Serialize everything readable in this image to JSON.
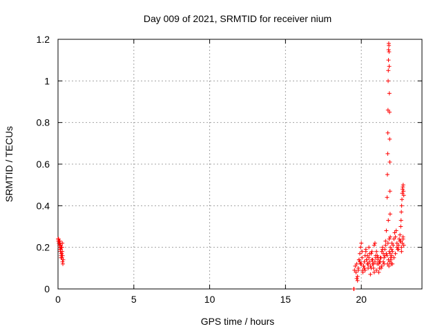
{
  "chart_data": {
    "type": "scatter",
    "title": "Day 009 of 2021, SRMTID for receiver nium",
    "xlabel": "GPS time / hours",
    "ylabel": "SRMTID / TECUs",
    "xlim": [
      0,
      24
    ],
    "ylim": [
      0,
      1.2
    ],
    "xticks": [
      0,
      5,
      10,
      15,
      20
    ],
    "xtick_labels": [
      "0",
      "5",
      "10",
      "15",
      "20"
    ],
    "yticks": [
      0,
      0.2,
      0.4,
      0.6,
      0.8,
      1.0,
      1.2
    ],
    "ytick_labels": [
      "0",
      "0.2",
      "0.4",
      "0.6",
      "0.8",
      "1",
      "1.2"
    ],
    "grid": true,
    "marker": "plus",
    "color": "#ff0000",
    "series": [
      {
        "name": "SRMTID",
        "x": [
          0.0,
          0.02,
          0.04,
          0.06,
          0.08,
          0.1,
          0.12,
          0.14,
          0.16,
          0.18,
          0.2,
          0.22,
          0.24,
          0.26,
          0.28,
          0.3,
          0.32,
          0.34,
          0.1,
          0.14,
          0.18,
          0.22,
          0.26,
          0.3,
          0.12,
          0.2,
          0.28,
          19.55,
          19.6,
          19.65,
          19.7,
          19.75,
          19.8,
          19.85,
          19.9,
          19.95,
          20.0,
          20.05,
          20.1,
          20.15,
          20.2,
          20.25,
          20.3,
          20.35,
          20.4,
          20.45,
          20.5,
          20.55,
          20.6,
          20.65,
          20.7,
          20.75,
          20.8,
          20.85,
          20.9,
          20.95,
          21.0,
          21.05,
          21.1,
          21.15,
          21.2,
          21.25,
          21.3,
          21.35,
          21.4,
          21.45,
          21.5,
          21.55,
          21.6,
          21.65,
          19.7,
          19.8,
          19.9,
          20.0,
          20.1,
          20.2,
          20.3,
          20.4,
          20.5,
          20.6,
          20.7,
          20.8,
          20.9,
          21.0,
          21.1,
          21.2,
          21.3,
          21.4,
          21.5,
          21.6,
          19.75,
          19.85,
          19.95,
          20.05,
          20.15,
          20.25,
          20.35,
          20.45,
          20.55,
          20.65,
          20.75,
          20.85,
          20.95,
          21.05,
          21.15,
          21.25,
          21.35,
          21.45,
          21.55,
          21.65,
          21.7,
          21.72,
          21.74,
          21.75,
          21.76,
          21.77,
          21.78,
          21.79,
          21.8,
          21.81,
          21.82,
          21.83,
          21.84,
          21.85,
          21.86,
          21.87,
          21.88,
          21.89,
          21.9,
          21.91,
          21.7,
          21.73,
          21.76,
          21.79,
          21.82,
          21.85,
          21.88,
          21.91,
          21.94,
          21.97,
          22.0,
          21.78,
          21.84,
          21.9,
          21.96,
          22.02,
          22.0,
          22.05,
          22.1,
          22.15,
          22.2,
          22.25,
          22.3,
          22.35,
          22.4,
          22.45,
          22.5,
          22.55,
          22.6,
          22.65,
          22.7,
          22.75,
          22.8,
          22.05,
          22.15,
          22.25,
          22.35,
          22.45,
          22.55,
          22.65,
          22.75,
          22.6,
          22.62,
          22.64,
          22.66,
          22.68,
          22.7,
          22.72,
          22.74,
          22.76,
          22.78,
          22.8,
          19.5,
          19.52
        ],
        "y": [
          0.24,
          0.23,
          0.24,
          0.22,
          0.23,
          0.21,
          0.2,
          0.22,
          0.18,
          0.19,
          0.16,
          0.2,
          0.17,
          0.15,
          0.18,
          0.13,
          0.12,
          0.14,
          0.22,
          0.19,
          0.21,
          0.17,
          0.2,
          0.16,
          0.23,
          0.15,
          0.22,
          0.09,
          0.11,
          0.08,
          0.12,
          0.06,
          0.1,
          0.14,
          0.17,
          0.2,
          0.12,
          0.15,
          0.09,
          0.11,
          0.13,
          0.16,
          0.18,
          0.14,
          0.12,
          0.1,
          0.15,
          0.13,
          0.11,
          0.17,
          0.14,
          0.12,
          0.1,
          0.08,
          0.13,
          0.15,
          0.18,
          0.16,
          0.14,
          0.12,
          0.1,
          0.13,
          0.15,
          0.18,
          0.2,
          0.17,
          0.15,
          0.19,
          0.21,
          0.17,
          0.05,
          0.09,
          0.13,
          0.22,
          0.08,
          0.1,
          0.19,
          0.16,
          0.2,
          0.07,
          0.18,
          0.12,
          0.22,
          0.09,
          0.15,
          0.13,
          0.1,
          0.19,
          0.12,
          0.23,
          0.04,
          0.14,
          0.12,
          0.18,
          0.11,
          0.09,
          0.14,
          0.12,
          0.17,
          0.1,
          0.14,
          0.21,
          0.16,
          0.12,
          0.08,
          0.15,
          0.11,
          0.13,
          0.16,
          0.28,
          0.44,
          0.55,
          0.65,
          0.75,
          0.86,
          1.0,
          1.05,
          1.1,
          1.15,
          1.18,
          1.17,
          1.14,
          1.07,
          0.94,
          0.85,
          0.72,
          0.61,
          0.47,
          0.36,
          0.25,
          0.16,
          0.12,
          0.22,
          0.14,
          0.11,
          0.18,
          0.13,
          0.2,
          0.15,
          0.12,
          0.19,
          0.33,
          0.24,
          0.17,
          0.14,
          0.22,
          0.16,
          0.18,
          0.21,
          0.24,
          0.27,
          0.25,
          0.28,
          0.22,
          0.19,
          0.21,
          0.24,
          0.26,
          0.23,
          0.2,
          0.22,
          0.25,
          0.21,
          0.12,
          0.15,
          0.17,
          0.2,
          0.19,
          0.23,
          0.18,
          0.24,
          0.3,
          0.33,
          0.37,
          0.4,
          0.43,
          0.46,
          0.48,
          0.49,
          0.5,
          0.47,
          0.45,
          0.0,
          0.0
        ]
      }
    ]
  }
}
